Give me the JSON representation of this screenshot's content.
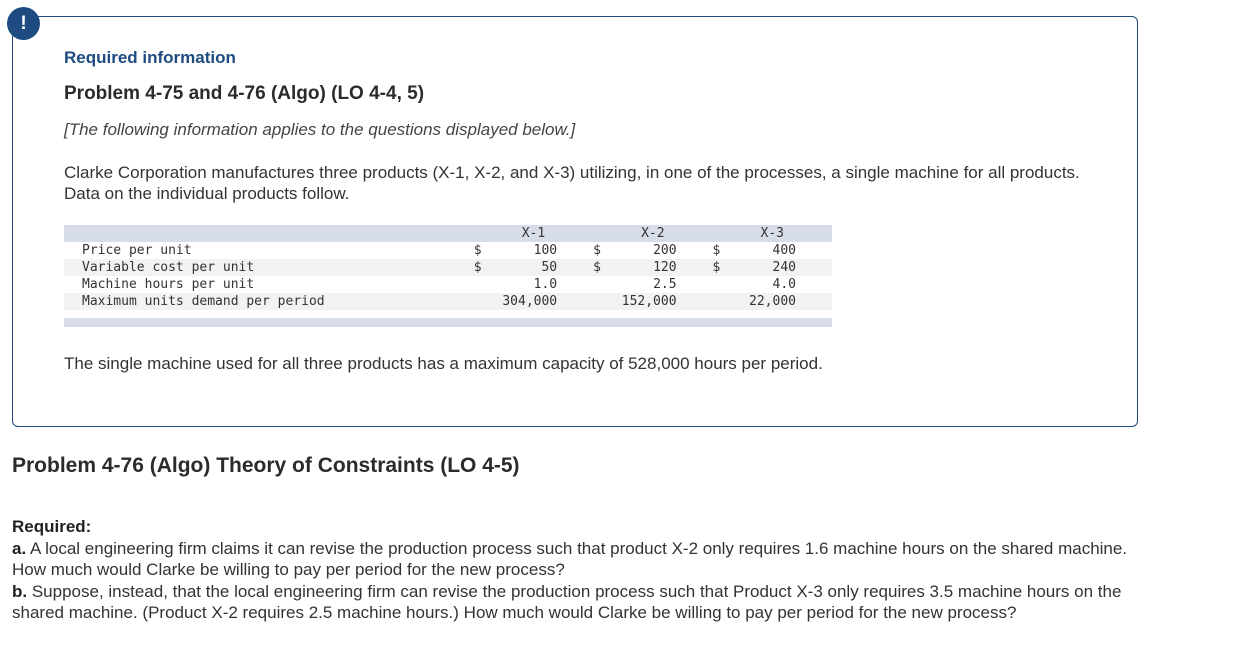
{
  "alert": {
    "icon": "!"
  },
  "info": {
    "heading": "Required information",
    "problem_title": "Problem 4-75 and 4-76 (Algo) (LO 4-4, 5)",
    "note": "[The following information applies to the questions displayed below.]",
    "intro": "Clarke Corporation manufactures three products (X-1, X-2, and X-3) utilizing, in one of the processes, a single machine for all products. Data on the individual products follow.",
    "table": {
      "columns": [
        "X-1",
        "X-2",
        "X-3"
      ],
      "rows": [
        {
          "label": "Price per unit",
          "cur": [
            "$",
            "$",
            "$"
          ],
          "values": [
            "100",
            "200",
            "400"
          ]
        },
        {
          "label": "Variable cost per unit",
          "cur": [
            "$",
            "$",
            "$"
          ],
          "values": [
            "50",
            "120",
            "240"
          ]
        },
        {
          "label": "Machine hours per unit",
          "cur": [
            "",
            "",
            ""
          ],
          "values": [
            "1.0",
            "2.5",
            "4.0"
          ]
        },
        {
          "label": "Maximum units demand per period",
          "cur": [
            "",
            "",
            ""
          ],
          "values": [
            "304,000",
            "152,000",
            "22,000"
          ]
        }
      ]
    },
    "capacity": "The single machine used for all three products has a maximum capacity of 528,000 hours per period."
  },
  "problem": {
    "title": "Problem 4-76 (Algo) Theory of Constraints (LO 4-5)",
    "required_label": "Required:",
    "a_label": "a.",
    "a_text": " A local engineering firm claims it can revise the production process such that product X-2 only requires 1.6 machine hours on the shared machine. How much would Clarke be willing to pay per period for the new process?",
    "b_label": "b.",
    "b_text": " Suppose, instead, that the local engineering firm can revise the production process such that Product X-3 only requires 3.5 machine hours on the shared machine. (Product X-2 requires 2.5 machine hours.) How much would Clarke be willing to pay per period for the new process?"
  }
}
